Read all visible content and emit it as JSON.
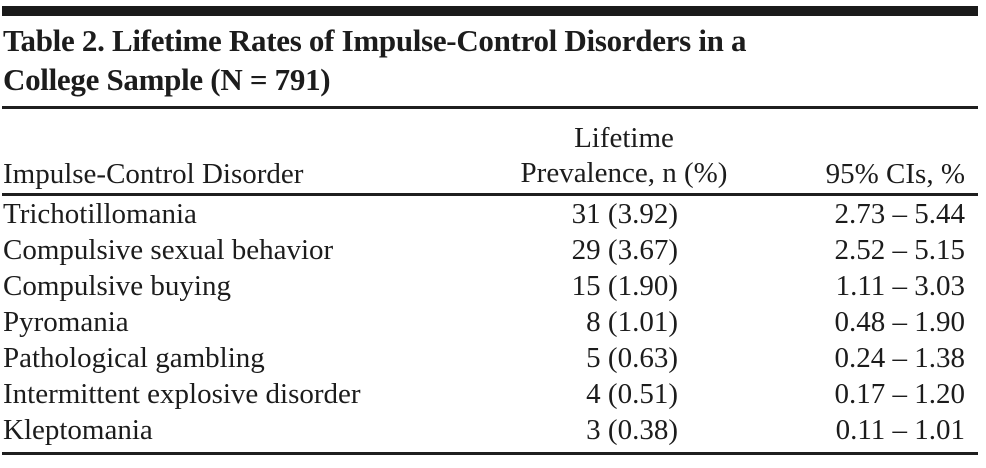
{
  "page": {
    "title_lines": [
      "Table 2. Lifetime Rates of Impulse-Control Disorders in a",
      "College Sample (N = 791)"
    ]
  },
  "table": {
    "columns": {
      "disorder": "Impulse-Control Disorder",
      "prevalence_lines": [
        "Lifetime",
        "Prevalence, n (%)"
      ],
      "ci": "95% CIs, %"
    },
    "rows": [
      {
        "disorder": "Trichotillomania",
        "prevalence": "31 (3.92)",
        "ci": "2.73 – 5.44"
      },
      {
        "disorder": "Compulsive sexual behavior",
        "prevalence": "29 (3.67)",
        "ci": "2.52 – 5.15"
      },
      {
        "disorder": "Compulsive buying",
        "prevalence": "15 (1.90)",
        "ci": "1.11 – 3.03"
      },
      {
        "disorder": "Pyromania",
        "prevalence": "8 (1.01)",
        "ci": "0.48 – 1.90"
      },
      {
        "disorder": "Pathological gambling",
        "prevalence": "5 (0.63)",
        "ci": "0.24 – 1.38"
      },
      {
        "disorder": "Intermittent explosive disorder",
        "prevalence": "4 (0.51)",
        "ci": "0.17 – 1.20"
      },
      {
        "disorder": "Kleptomania",
        "prevalence": "3 (0.38)",
        "ci": "0.11 – 1.01"
      }
    ]
  },
  "colors": {
    "background": "#ffffff",
    "text": "#1c1c1c",
    "rule": "#1f1f1f",
    "top_bar": "#1a1a1a"
  }
}
